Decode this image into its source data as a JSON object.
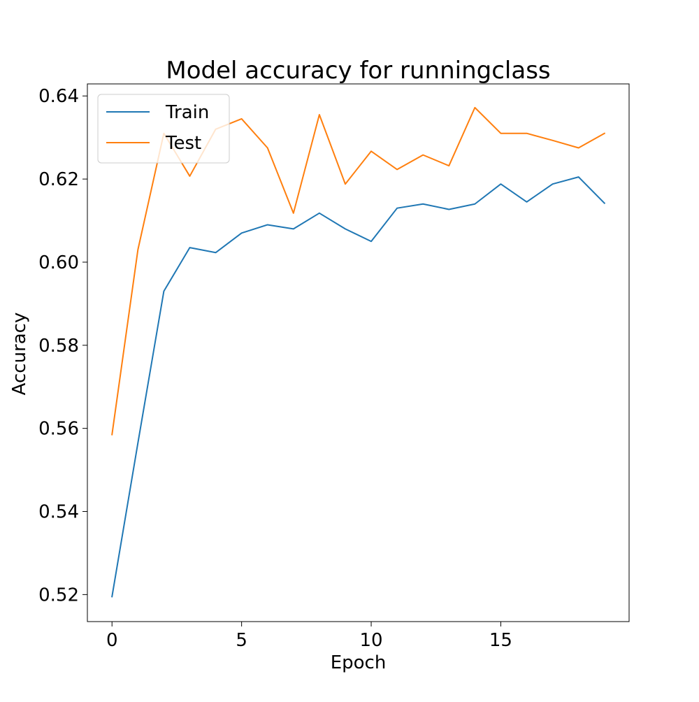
{
  "chart_data": {
    "type": "line",
    "title": "Model accuracy for runningclass",
    "xlabel": "Epoch",
    "ylabel": "Accuracy",
    "xlim": [
      -0.95,
      19.95
    ],
    "ylim": [
      0.5135,
      0.6429
    ],
    "xticks": [
      0,
      5,
      10,
      15
    ],
    "xtick_labels": [
      "0",
      "5",
      "10",
      "15"
    ],
    "yticks": [
      0.52,
      0.54,
      0.56,
      0.58,
      0.6,
      0.62,
      0.64
    ],
    "ytick_labels": [
      "0.52",
      "0.54",
      "0.56",
      "0.58",
      "0.60",
      "0.62",
      "0.64"
    ],
    "grid": false,
    "legend": "upper left",
    "x": [
      0,
      1,
      2,
      3,
      4,
      5,
      6,
      7,
      8,
      9,
      10,
      11,
      12,
      13,
      14,
      15,
      16,
      17,
      18,
      19
    ],
    "series": [
      {
        "name": "Train",
        "color": "#1f77b4",
        "values": [
          0.5195,
          0.5565,
          0.593,
          0.6035,
          0.6023,
          0.607,
          0.609,
          0.608,
          0.6118,
          0.608,
          0.605,
          0.613,
          0.614,
          0.6127,
          0.614,
          0.6188,
          0.6145,
          0.6188,
          0.6205,
          0.6142
        ]
      },
      {
        "name": "Test",
        "color": "#ff7f0e",
        "values": [
          0.5585,
          0.603,
          0.631,
          0.6207,
          0.632,
          0.6345,
          0.6275,
          0.6118,
          0.6355,
          0.6188,
          0.6267,
          0.6223,
          0.6258,
          0.6232,
          0.6372,
          0.631,
          0.631,
          0.6293,
          0.6275,
          0.631
        ]
      }
    ]
  }
}
